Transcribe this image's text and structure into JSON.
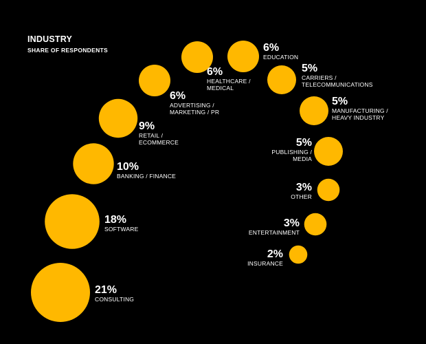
{
  "chart_data": {
    "type": "bubble",
    "title": "INDUSTRY",
    "subtitle": "SHARE OF RESPONDENTS",
    "color": "#FFB800",
    "background": "#000000",
    "unit": "%",
    "items": [
      {
        "value": 21,
        "label": "21%",
        "category": [
          "CONSULTING"
        ]
      },
      {
        "value": 18,
        "label": "18%",
        "category": [
          "SOFTWARE"
        ]
      },
      {
        "value": 10,
        "label": "10%",
        "category": [
          "BANKING / FINANCE"
        ]
      },
      {
        "value": 9,
        "label": "9%",
        "category": [
          "RETAIL /",
          "ECOMMERCE"
        ]
      },
      {
        "value": 6,
        "label": "6%",
        "category": [
          "ADVERTISING /",
          "MARKETING / PR"
        ]
      },
      {
        "value": 6,
        "label": "6%",
        "category": [
          "HEALTHCARE /",
          "MEDICAL"
        ]
      },
      {
        "value": 6,
        "label": "6%",
        "category": [
          "EDUCATION"
        ]
      },
      {
        "value": 5,
        "label": "5%",
        "category": [
          "CARRIERS /",
          "TELECOMMUNICATIONS"
        ]
      },
      {
        "value": 5,
        "label": "5%",
        "category": [
          "MANUFACTURING /",
          "HEAVY INDUSTRY"
        ]
      },
      {
        "value": 5,
        "label": "5%",
        "category": [
          "PUBLISHING /",
          "MEDIA"
        ]
      },
      {
        "value": 3,
        "label": "3%",
        "category": [
          "OTHER"
        ]
      },
      {
        "value": 3,
        "label": "3%",
        "category": [
          "ENTERTAINMENT"
        ]
      },
      {
        "value": 2,
        "label": "2%",
        "category": [
          "INSURANCE"
        ]
      }
    ]
  }
}
